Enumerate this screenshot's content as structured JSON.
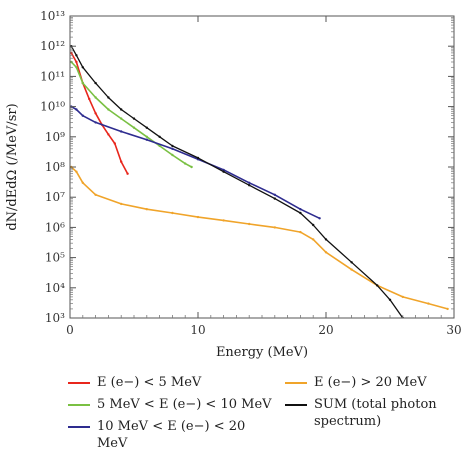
{
  "chart_data": {
    "type": "line",
    "xlabel": "Energy (MeV)",
    "ylabel": "dN/dEdΩ (/MeV/sr)",
    "xlim": [
      0,
      30
    ],
    "ylim": [
      1000,
      10000000000000
    ],
    "yscale": "log",
    "x_ticks": [
      "0",
      "10",
      "20",
      "30"
    ],
    "y_ticks": [
      "10³",
      "10⁴",
      "10⁵",
      "10⁶",
      "10⁷",
      "10⁸",
      "10⁹",
      "10¹⁰",
      "10¹¹",
      "10¹²",
      "10¹³"
    ],
    "legend_placement": "below",
    "series": [
      {
        "name": "E (e−) < 5 MeV",
        "color": "#e8261c",
        "x": [
          0.1,
          0.5,
          1,
          1.5,
          2,
          2.5,
          3,
          3.5,
          4.0,
          4.5
        ],
        "y": [
          600000000000,
          300000000000,
          60000000000,
          18000000000,
          6000000000,
          2500000000,
          1200000000,
          600000000,
          150000000,
          60000000
        ]
      },
      {
        "name": "5 MeV < E (e−) < 10 MeV",
        "color": "#7ac043",
        "x": [
          0.1,
          0.5,
          1,
          2,
          3,
          4,
          5,
          6,
          7,
          8,
          9,
          9.5
        ],
        "y": [
          300000000000,
          200000000000,
          60000000000,
          20000000000,
          8000000000,
          4000000000,
          2000000000,
          1000000000,
          500000000,
          250000000,
          130000000,
          100000000
        ]
      },
      {
        "name": "10 MeV < E (e−) < 20 MeV",
        "color": "#2e2c8f",
        "x": [
          0.1,
          0.5,
          1,
          2,
          4,
          6,
          8,
          10,
          12,
          14,
          16,
          18,
          19.5
        ],
        "y": [
          10000000000,
          8000000000,
          5000000000,
          3000000000,
          1500000000,
          800000000,
          400000000,
          180000000,
          80000000,
          30000000,
          12000000,
          4000000,
          2000000
        ]
      },
      {
        "name": "E (e−) > 20 MeV",
        "color": "#f0a42a",
        "x": [
          0.1,
          0.5,
          1,
          2,
          4,
          6,
          8,
          10,
          12,
          14,
          16,
          18,
          19,
          20,
          22,
          24,
          26,
          28,
          29.5
        ],
        "y": [
          100000000,
          70000000,
          30000000,
          12000000,
          6000000,
          4000000,
          3000000,
          2200000,
          1700000,
          1300000,
          1000000,
          700000,
          400000,
          150000,
          40000,
          12000,
          5000,
          3000,
          2000
        ]
      },
      {
        "name": "SUM (total photon spectrum)",
        "color": "#111111",
        "x": [
          0.1,
          0.5,
          1,
          2,
          3,
          4,
          5,
          6,
          7,
          8,
          10,
          12,
          14,
          16,
          18,
          19,
          20,
          22,
          24,
          25,
          26
        ],
        "y": [
          1000000000000,
          500000000000,
          200000000000,
          60000000000,
          20000000000,
          8000000000,
          4000000000,
          2000000000,
          1000000000,
          500000000,
          200000000,
          70000000,
          25000000,
          9000000,
          3000000,
          1200000,
          400000,
          70000,
          12000,
          4000,
          1000
        ]
      }
    ]
  }
}
